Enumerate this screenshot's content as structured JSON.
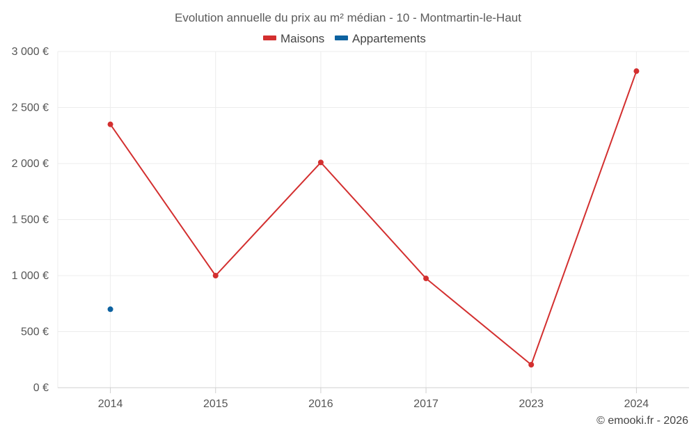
{
  "chart_data": {
    "type": "line",
    "title": "Evolution annuelle du prix au m² médian - 10 - Montmartin-le-Haut",
    "categories": [
      "2014",
      "2015",
      "2016",
      "2017",
      "2023",
      "2024"
    ],
    "series": [
      {
        "name": "Maisons",
        "color": "#d32f2f",
        "values": [
          2350,
          1000,
          2010,
          975,
          205,
          2825
        ]
      },
      {
        "name": "Appartements",
        "color": "#0d62a0",
        "values": [
          700,
          null,
          null,
          null,
          null,
          null
        ]
      }
    ],
    "ylim": [
      0,
      3000
    ],
    "yticks": [
      0,
      500,
      1000,
      1500,
      2000,
      2500,
      3000
    ],
    "ytick_labels": [
      "0 €",
      "500 €",
      "1 000 €",
      "1 500 €",
      "2 000 €",
      "2 500 €",
      "3 000 €"
    ],
    "grid": true,
    "legend_position": "top-center"
  },
  "credit": "© emooki.fr - 2026"
}
